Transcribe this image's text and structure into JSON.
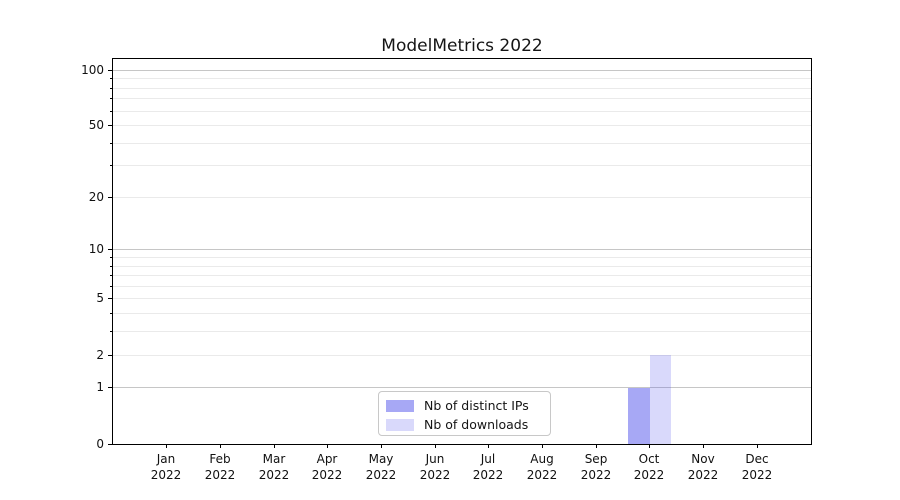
{
  "figure": {
    "title": "ModelMetrics 2022"
  },
  "chart_data": {
    "type": "bar",
    "title": "ModelMetrics 2022",
    "categories": [
      "Jan 2022",
      "Feb 2022",
      "Mar 2022",
      "Apr 2022",
      "May 2022",
      "Jun 2022",
      "Jul 2022",
      "Aug 2022",
      "Sep 2022",
      "Oct 2022",
      "Nov 2022",
      "Dec 2022"
    ],
    "x_months": [
      "Jan",
      "Feb",
      "Mar",
      "Apr",
      "May",
      "Jun",
      "Jul",
      "Aug",
      "Sep",
      "Oct",
      "Nov",
      "Dec"
    ],
    "x_year": "2022",
    "series": [
      {
        "name": "Nb of distinct IPs",
        "color": "rgba(80,82,235,0.5)",
        "values": [
          0,
          0,
          0,
          0,
          0,
          0,
          0,
          0,
          0,
          1,
          0,
          0
        ]
      },
      {
        "name": "Nb of downloads",
        "color": "rgba(80,82,235,0.22)",
        "values": [
          0,
          0,
          0,
          0,
          0,
          0,
          0,
          0,
          0,
          2,
          0,
          0
        ]
      }
    ],
    "y_scale": "log1p",
    "ylim": [
      0,
      115
    ],
    "y_ticks_labeled": [
      0,
      1,
      2,
      5,
      10,
      20,
      50,
      100
    ],
    "y_major_gridlines": [
      1,
      10,
      100
    ],
    "y_minor_gridlines": [
      2,
      3,
      4,
      5,
      6,
      7,
      8,
      9,
      20,
      30,
      40,
      50,
      60,
      70,
      80,
      90
    ],
    "grid": true,
    "legend_position": "lower center",
    "legend_entries": [
      "Nb of distinct IPs",
      "Nb of downloads"
    ]
  },
  "colors": {
    "bar_distinct_ips_blended": "#aaaaf8",
    "bar_downloads_blended": "#dbdbf8",
    "major_grid": "#c6c6c6",
    "minor_grid": "#eaeaea",
    "spine": "#000000"
  }
}
